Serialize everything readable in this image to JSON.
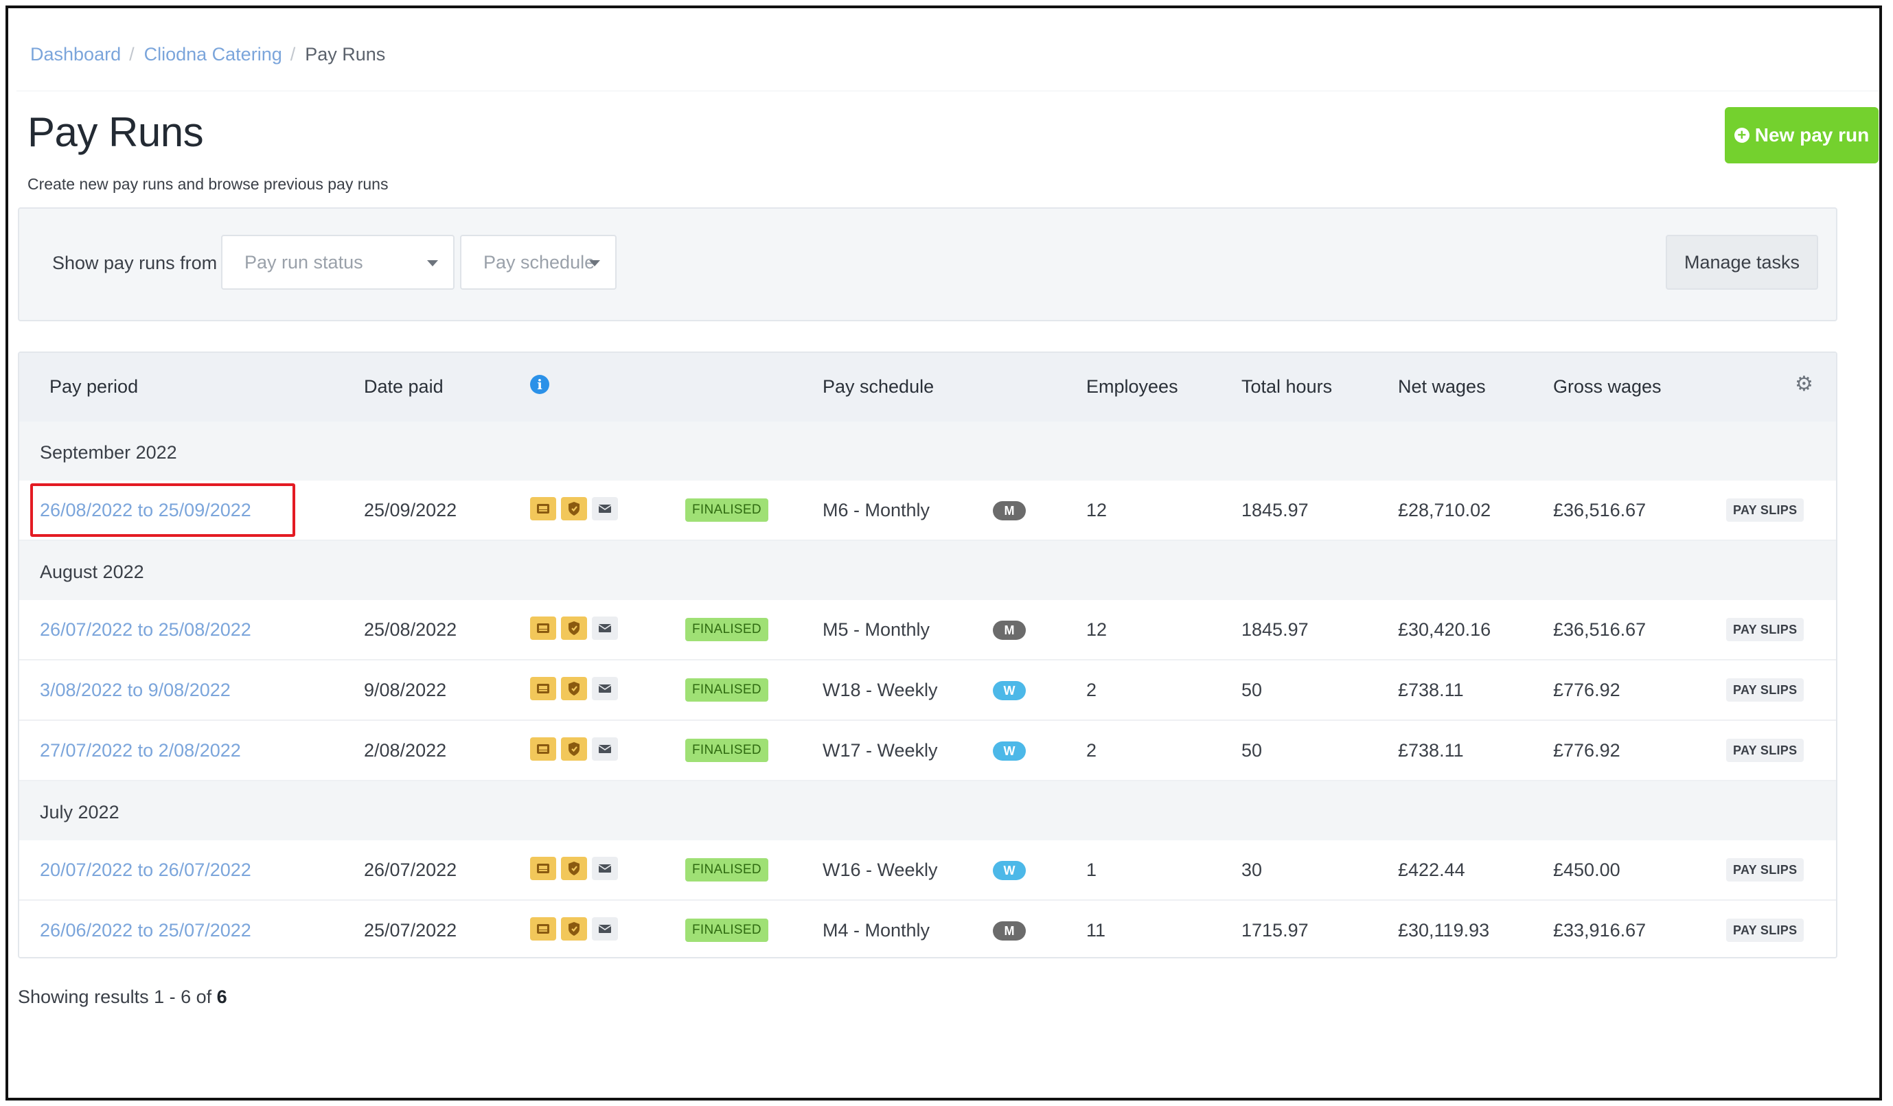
{
  "breadcrumb": {
    "items": [
      "Dashboard",
      "Cliodna Catering"
    ],
    "current": "Pay Runs"
  },
  "page": {
    "title": "Pay Runs",
    "subtitle": "Create new pay runs and browse previous pay runs",
    "new_button": "New pay run"
  },
  "filters": {
    "label": "Show pay runs from",
    "status_placeholder": "Pay run status",
    "schedule_placeholder": "Pay schedule",
    "manage_tasks": "Manage tasks"
  },
  "table": {
    "columns": {
      "pay_period": "Pay period",
      "date_paid": "Date paid",
      "pay_schedule": "Pay schedule",
      "employees": "Employees",
      "total_hours": "Total hours",
      "net_wages": "Net wages",
      "gross_wages": "Gross wages"
    },
    "groups": [
      {
        "label": "September 2022",
        "rows": [
          {
            "period": "26/08/2022 to 25/09/2022",
            "date_paid": "25/09/2022",
            "status": "FINALISED",
            "schedule": "M6 - Monthly",
            "freq": "M",
            "employees": "12",
            "hours": "1845.97",
            "net": "£28,710.02",
            "gross": "£36,516.67",
            "slips": "PAY SLIPS"
          }
        ]
      },
      {
        "label": "August 2022",
        "rows": [
          {
            "period": "26/07/2022 to 25/08/2022",
            "date_paid": "25/08/2022",
            "status": "FINALISED",
            "schedule": "M5 - Monthly",
            "freq": "M",
            "employees": "12",
            "hours": "1845.97",
            "net": "£30,420.16",
            "gross": "£36,516.67",
            "slips": "PAY SLIPS"
          },
          {
            "period": "3/08/2022 to 9/08/2022",
            "date_paid": "9/08/2022",
            "status": "FINALISED",
            "schedule": "W18 - Weekly",
            "freq": "W",
            "employees": "2",
            "hours": "50",
            "net": "£738.11",
            "gross": "£776.92",
            "slips": "PAY SLIPS"
          },
          {
            "period": "27/07/2022 to 2/08/2022",
            "date_paid": "2/08/2022",
            "status": "FINALISED",
            "schedule": "W17 - Weekly",
            "freq": "W",
            "employees": "2",
            "hours": "50",
            "net": "£738.11",
            "gross": "£776.92",
            "slips": "PAY SLIPS"
          }
        ]
      },
      {
        "label": "July 2022",
        "rows": [
          {
            "period": "20/07/2022 to 26/07/2022",
            "date_paid": "26/07/2022",
            "status": "FINALISED",
            "schedule": "W16 - Weekly",
            "freq": "W",
            "employees": "1",
            "hours": "30",
            "net": "£422.44",
            "gross": "£450.00",
            "slips": "PAY SLIPS"
          },
          {
            "period": "26/06/2022 to 25/07/2022",
            "date_paid": "25/07/2022",
            "status": "FINALISED",
            "schedule": "M4 - Monthly",
            "freq": "M",
            "employees": "11",
            "hours": "1715.97",
            "net": "£30,119.93",
            "gross": "£33,916.67",
            "slips": "PAY SLIPS"
          }
        ]
      }
    ]
  },
  "pagination": {
    "prefix": "Showing results 1 - 6 of",
    "total": "6"
  },
  "colors": {
    "accent_green": "#74d12e",
    "link_blue": "#7ba5db",
    "highlight_red": "#e31b23"
  },
  "icons": [
    "plus-circle-icon",
    "chevron-down-icon",
    "info-icon",
    "gear-icon",
    "inbox-tray-icon",
    "shield-icon",
    "envelope-icon"
  ]
}
